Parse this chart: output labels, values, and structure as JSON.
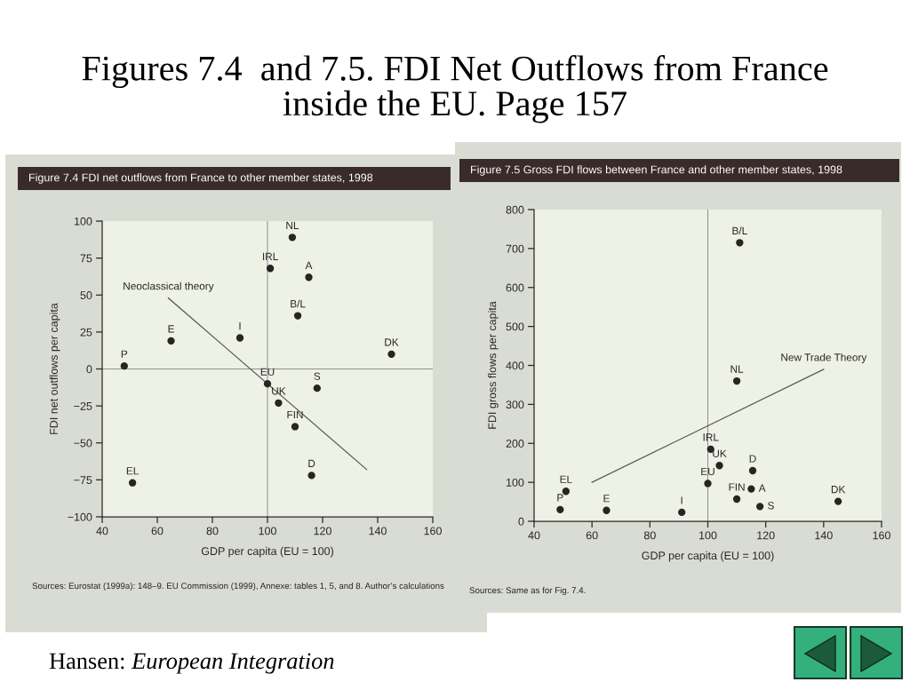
{
  "chart_data": [
    {
      "type": "other",
      "title": "Figures 7.4  and 7.5. FDI Net Outflows from France inside the EU. Page 157",
      "annotations": [
        "Hansen:",
        "European Integration"
      ]
    },
    {
      "type": "scatter",
      "title": "Figure 7.4 FDI net outflows from France to other member states, 1998",
      "xlabel": "GDP per capita (EU = 100)",
      "ylabel": "FDI net outflows per capita",
      "xlim": [
        40,
        160
      ],
      "xticks": [
        40,
        60,
        80,
        100,
        120,
        140,
        160
      ],
      "ylim": [
        -100,
        100
      ],
      "yticks": [
        {
          "value": -100,
          "label": "−100"
        },
        {
          "value": -75,
          "label": "−75"
        },
        {
          "value": -50,
          "label": "−50"
        },
        {
          "value": -25,
          "label": "−25"
        },
        0,
        25,
        50,
        75,
        100
      ],
      "ref_lines": [
        {
          "axis": "y",
          "value": 0,
          "color": "#8c8c8c"
        },
        {
          "axis": "x",
          "value": 100,
          "color": "#8c8c8c"
        }
      ],
      "series": [
        {
          "type": "scatter",
          "marker": "circle",
          "color": "#2a2323",
          "x": [
            48,
            51,
            65,
            90,
            100,
            101,
            104,
            109,
            110,
            111,
            115,
            116,
            118,
            145
          ],
          "values": [
            2,
            -77,
            19,
            21,
            -10,
            68,
            -23,
            89,
            -39,
            36,
            62,
            -72,
            -13,
            10
          ]
        },
        {
          "type": "line",
          "name": "Neoclassical theory",
          "color": "#5a5a5a",
          "line_style": "solid",
          "x": [
            64,
            136
          ],
          "values": [
            48,
            -68
          ]
        }
      ],
      "annotations": [
        {
          "text": "P",
          "x": 48,
          "y": 2
        },
        {
          "text": "EL",
          "x": 51,
          "y": -77
        },
        {
          "text": "E",
          "x": 65,
          "y": 19
        },
        {
          "text": "I",
          "x": 90,
          "y": 21
        },
        {
          "text": "EU",
          "x": 100,
          "y": -10
        },
        {
          "text": "IRL",
          "x": 101,
          "y": 68
        },
        {
          "text": "UK",
          "x": 104,
          "y": -23
        },
        {
          "text": "NL",
          "x": 109,
          "y": 89
        },
        {
          "text": "FIN",
          "x": 110,
          "y": -39
        },
        {
          "text": "B/L",
          "x": 111,
          "y": 36
        },
        {
          "text": "A",
          "x": 115,
          "y": 62
        },
        {
          "text": "D",
          "x": 116,
          "y": -72
        },
        {
          "text": "S",
          "x": 118,
          "y": -13
        },
        {
          "text": "DK",
          "x": 145,
          "y": 10
        },
        "Sources: Eurostat (1999a): 148–9. EU Commission (1999), Annexe: tables 1, 5, and 8. Author’s calculations"
      ]
    },
    {
      "type": "scatter",
      "title": "Figure 7.5 Gross FDI flows between France and other member states, 1998",
      "xlabel": "GDP per capita (EU = 100)",
      "ylabel": "FDI gross flows per capita",
      "xlim": [
        40,
        160
      ],
      "xticks": [
        40,
        60,
        80,
        100,
        120,
        140,
        160
      ],
      "ylim": [
        0,
        800
      ],
      "yticks": [
        0,
        100,
        200,
        300,
        400,
        500,
        600,
        700,
        800
      ],
      "ref_lines": [
        {
          "axis": "x",
          "value": 100,
          "color": "#8c8c8c"
        }
      ],
      "series": [
        {
          "type": "scatter",
          "marker": "circle",
          "color": "#2a2323",
          "x": [
            49,
            51,
            65,
            91,
            100,
            101,
            104,
            110,
            110,
            111,
            115,
            115.5,
            118,
            145
          ],
          "values": [
            30,
            77,
            28,
            23,
            97,
            185,
            143,
            360,
            57,
            715,
            83,
            130,
            38,
            51
          ]
        },
        {
          "type": "line",
          "name": "New Trade Theory",
          "color": "#5a5a5a",
          "line_style": "solid",
          "x": [
            60,
            140
          ],
          "values": [
            100,
            390
          ]
        }
      ],
      "annotations": [
        {
          "text": "P",
          "x": 49,
          "y": 30
        },
        {
          "text": "EL",
          "x": 51,
          "y": 77
        },
        {
          "text": "E",
          "x": 65,
          "y": 28
        },
        {
          "text": "I",
          "x": 91,
          "y": 23
        },
        {
          "text": "EU",
          "x": 100,
          "y": 97
        },
        {
          "text": "IRL",
          "x": 101,
          "y": 185
        },
        {
          "text": "UK",
          "x": 104,
          "y": 143
        },
        {
          "text": "NL",
          "x": 110,
          "y": 360
        },
        {
          "text": "FIN",
          "x": 110,
          "y": 57
        },
        {
          "text": "B/L",
          "x": 111,
          "y": 715
        },
        {
          "text": "A",
          "x": 115,
          "y": 83
        },
        {
          "text": "D",
          "x": 115.5,
          "y": 130
        },
        {
          "text": "S",
          "x": 118,
          "y": 38
        },
        {
          "text": "DK",
          "x": 145,
          "y": 51
        },
        "Sources: Same as for Fig. 7.4."
      ]
    }
  ]
}
